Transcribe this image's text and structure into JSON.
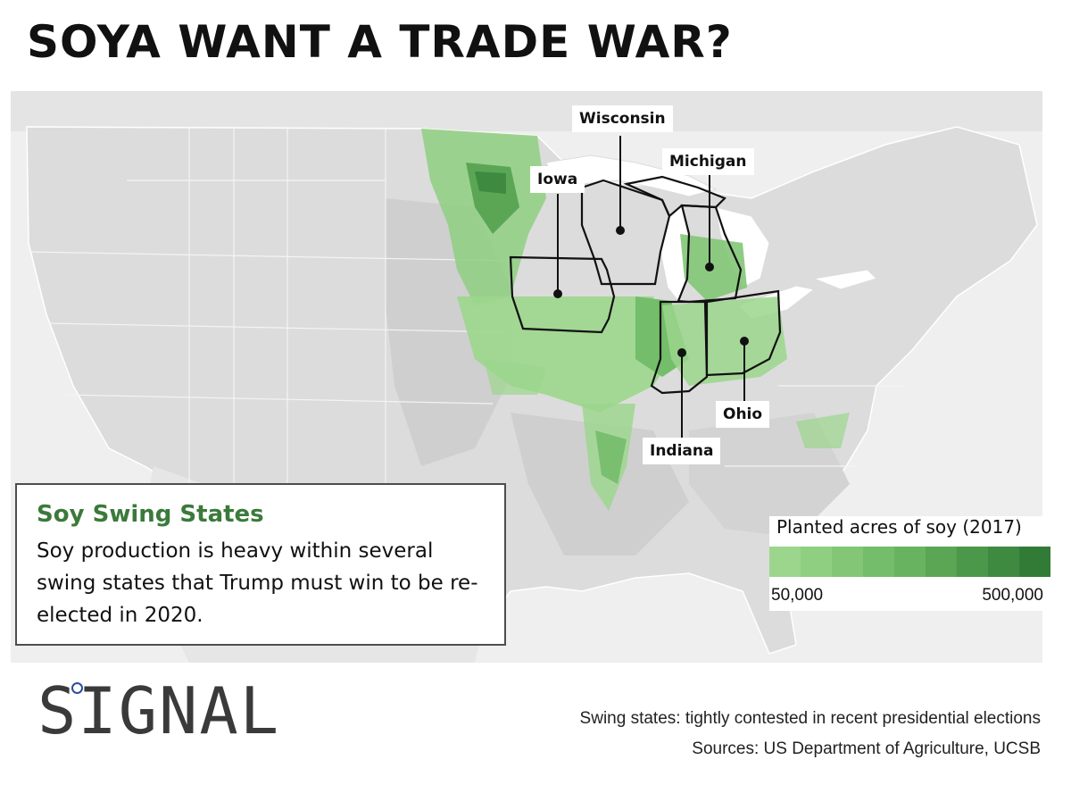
{
  "title": "SOYA WANT A TRADE WAR?",
  "map": {
    "states": [
      {
        "name": "Wisconsin",
        "icon": "state-marker-dot"
      },
      {
        "name": "Iowa",
        "icon": "state-marker-dot"
      },
      {
        "name": "Michigan",
        "icon": "state-marker-dot"
      },
      {
        "name": "Ohio",
        "icon": "state-marker-dot"
      },
      {
        "name": "Indiana",
        "icon": "state-marker-dot"
      }
    ],
    "colors": {
      "land": "#dcdcdc",
      "water": "#efefef",
      "lakes": "#ffffff"
    }
  },
  "infobox": {
    "heading": "Soy Swing States",
    "body": "Soy production is heavy within several swing states that Trump must win to be re-elected in 2020.",
    "heading_color": "#3b7a3a"
  },
  "legend": {
    "title": "Planted acres of soy (2017)",
    "min_label": "50,000",
    "max_label": "500,000",
    "colors": [
      "#9bd68c",
      "#8fcf81",
      "#82c676",
      "#74bd6a",
      "#67b35f",
      "#5aa655",
      "#4c984a",
      "#3e8a40",
      "#327b36"
    ]
  },
  "logo": {
    "text": "SIGNAL",
    "dot_color": "#2a4d9e"
  },
  "footer": {
    "note": "Swing states: tightly contested in recent presidential elections",
    "sources": "Sources: US Department of Agriculture, UCSB"
  }
}
